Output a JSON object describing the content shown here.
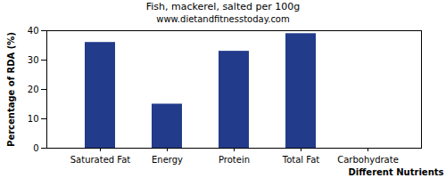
{
  "chart_data": {
    "type": "bar",
    "title": "Fish, mackerel, salted per 100g",
    "subtitle": "www.dietandfitnesstoday.com",
    "x_label": "Different Nutrients",
    "y_label": "Percentage of RDA (%)",
    "categories": [
      "Saturated Fat",
      "Energy",
      "Protein",
      "Total Fat",
      "Carbohydrate"
    ],
    "values": [
      36,
      15,
      33,
      39,
      0
    ],
    "color": "#233b8b",
    "ylim": [
      0,
      40
    ],
    "yticks": [
      0,
      10,
      20,
      30,
      40
    ],
    "grid": false
  }
}
